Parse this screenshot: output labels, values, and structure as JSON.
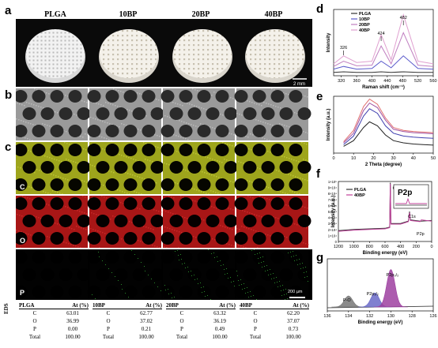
{
  "figure": {
    "panel_labels": [
      "a",
      "b",
      "c",
      "d",
      "e",
      "f",
      "g"
    ],
    "columns": [
      "PLGA",
      "10BP",
      "20BP",
      "40BP"
    ],
    "scale_bar_a": "2 mm",
    "scale_bar_c": "200 µm",
    "element_labels": [
      "C",
      "O",
      "P"
    ],
    "element_colors": {
      "C": "#b8c020",
      "O": "#c41a1a",
      "P": "#1a7a1a"
    }
  },
  "eds": {
    "row_label": "EDS",
    "header_suffix": "At (%)",
    "groups": [
      {
        "name": "PLGA",
        "rows": [
          [
            "C",
            "63.01"
          ],
          [
            "O",
            "36.99"
          ],
          [
            "P",
            "0.00"
          ],
          [
            "Total",
            "100.00"
          ]
        ]
      },
      {
        "name": "10BP",
        "rows": [
          [
            "C",
            "62.77"
          ],
          [
            "O",
            "37.02"
          ],
          [
            "P",
            "0.21"
          ],
          [
            "Total",
            "100.00"
          ]
        ]
      },
      {
        "name": "20BP",
        "rows": [
          [
            "C",
            "63.32"
          ],
          [
            "O",
            "36.19"
          ],
          [
            "P",
            "0.49"
          ],
          [
            "Total",
            "100.00"
          ]
        ]
      },
      {
        "name": "40BP",
        "rows": [
          [
            "C",
            "62.20"
          ],
          [
            "O",
            "37.07"
          ],
          [
            "P",
            "0.73"
          ],
          [
            "Total",
            "100.00"
          ]
        ]
      }
    ]
  },
  "chart_data": [
    {
      "panel": "d",
      "type": "line",
      "xlabel": "Raman shift (cm⁻¹)",
      "ylabel": "Intensity",
      "xlim": [
        300,
        560
      ],
      "xticks": [
        320,
        360,
        400,
        440,
        480,
        520,
        560
      ],
      "legend": [
        "PLGA",
        "10BP",
        "20BP",
        "40BP"
      ],
      "legend_position": "top-right",
      "annotations": [
        {
          "text": "326",
          "x": 326
        },
        {
          "text": "424",
          "x": 424
        },
        {
          "text": "482",
          "x": 482
        }
      ],
      "series": [
        {
          "name": "PLGA",
          "color": "#333333",
          "x": [
            300,
            326,
            360,
            400,
            424,
            450,
            482,
            520,
            560
          ],
          "y": [
            0.05,
            0.06,
            0.05,
            0.05,
            0.06,
            0.05,
            0.06,
            0.05,
            0.05
          ]
        },
        {
          "name": "10BP",
          "color": "#5a5acb",
          "x": [
            300,
            326,
            360,
            400,
            424,
            450,
            482,
            520,
            560
          ],
          "y": [
            0.1,
            0.14,
            0.1,
            0.11,
            0.22,
            0.12,
            0.3,
            0.11,
            0.1
          ]
        },
        {
          "name": "20BP",
          "color": "#c07fc0",
          "x": [
            300,
            326,
            360,
            400,
            424,
            450,
            482,
            520,
            560
          ],
          "y": [
            0.14,
            0.22,
            0.15,
            0.16,
            0.45,
            0.18,
            0.65,
            0.16,
            0.14
          ]
        },
        {
          "name": "40BP",
          "color": "#e0a0d0",
          "x": [
            300,
            326,
            360,
            400,
            424,
            450,
            482,
            520,
            560
          ],
          "y": [
            0.18,
            0.3,
            0.2,
            0.22,
            0.62,
            0.24,
            0.92,
            0.22,
            0.18
          ]
        }
      ]
    },
    {
      "panel": "e",
      "type": "line",
      "xlabel": "2 Theta (degree)",
      "ylabel": "Intensity (a.u.)",
      "xlim": [
        0,
        50
      ],
      "xticks": [
        0,
        10,
        20,
        30,
        40,
        50
      ],
      "series": [
        {
          "name": "PLGA",
          "color": "#222222",
          "x": [
            5,
            10,
            15,
            18,
            22,
            26,
            30,
            35,
            40,
            45,
            50
          ],
          "y": [
            0.12,
            0.22,
            0.45,
            0.55,
            0.48,
            0.32,
            0.22,
            0.18,
            0.16,
            0.15,
            0.14
          ]
        },
        {
          "name": "10BP",
          "color": "#4040b0",
          "x": [
            5,
            10,
            15,
            18,
            22,
            26,
            30,
            35,
            40,
            45,
            50
          ],
          "y": [
            0.15,
            0.3,
            0.65,
            0.78,
            0.7,
            0.48,
            0.35,
            0.3,
            0.28,
            0.27,
            0.26
          ]
        },
        {
          "name": "20BP",
          "color": "#a050a0",
          "x": [
            5,
            10,
            15,
            18,
            22,
            26,
            30,
            35,
            40,
            45,
            50
          ],
          "y": [
            0.18,
            0.35,
            0.75,
            0.88,
            0.8,
            0.58,
            0.42,
            0.38,
            0.36,
            0.35,
            0.34
          ]
        },
        {
          "name": "40BP",
          "color": "#e07070",
          "x": [
            5,
            10,
            15,
            18,
            22,
            26,
            30,
            35,
            40,
            45,
            50
          ],
          "y": [
            0.2,
            0.4,
            0.82,
            0.95,
            0.86,
            0.62,
            0.45,
            0.4,
            0.38,
            0.37,
            0.36
          ]
        }
      ]
    },
    {
      "panel": "f",
      "type": "line",
      "xlabel": "Binding energy (eV)",
      "ylabel": "Intensity (a.u.)",
      "xlim": [
        1200,
        0
      ],
      "xticks": [
        1200,
        1000,
        800,
        600,
        400,
        200,
        0
      ],
      "ytick_labels": [
        "1×10⁵",
        "9×10⁴",
        "8×10⁴",
        "7×10⁴",
        "6×10⁴",
        "5×10⁴",
        "4×10⁴",
        "3×10⁴",
        "2×10⁴",
        "1×10⁴",
        "0"
      ],
      "legend": [
        "PLGA",
        "40BP"
      ],
      "annotations": [
        {
          "text": "O1s",
          "x": 532
        },
        {
          "text": "C1s",
          "x": 285
        },
        {
          "text": "P2p",
          "x": 133
        }
      ],
      "inset_title": "P2p",
      "series": [
        {
          "name": "PLGA",
          "color": "#333333",
          "x": [
            1200,
            1000,
            800,
            600,
            540,
            532,
            525,
            400,
            300,
            285,
            275,
            150,
            133,
            0
          ],
          "y": [
            0.18,
            0.2,
            0.21,
            0.22,
            0.24,
            0.98,
            0.3,
            0.3,
            0.34,
            0.5,
            0.36,
            0.34,
            0.34,
            0.35
          ]
        },
        {
          "name": "40BP",
          "color": "#c0409a",
          "x": [
            1200,
            1000,
            800,
            600,
            540,
            532,
            525,
            400,
            300,
            285,
            275,
            150,
            133,
            0
          ],
          "y": [
            0.17,
            0.19,
            0.2,
            0.21,
            0.23,
            0.96,
            0.29,
            0.29,
            0.33,
            0.48,
            0.35,
            0.33,
            0.36,
            0.34
          ]
        }
      ]
    },
    {
      "panel": "g",
      "type": "area",
      "xlabel": "Binding energy (eV)",
      "xlim": [
        136,
        126
      ],
      "xticks": [
        136,
        134,
        132,
        130,
        128,
        126
      ],
      "annotations": [
        {
          "text": "P-O",
          "x": 134.0
        },
        {
          "text": "P2p₁/₂",
          "x": 131.5
        },
        {
          "text": "P2p₃/₂",
          "x": 130.0
        }
      ],
      "series": [
        {
          "name": "P-O",
          "color": "#777777",
          "center": 134.0,
          "height": 0.25
        },
        {
          "name": "P2p1/2",
          "color": "#6a6ac8",
          "center": 131.5,
          "height": 0.32
        },
        {
          "name": "P2p3/2",
          "color": "#9d3fa0",
          "center": 130.0,
          "height": 0.85
        }
      ]
    }
  ]
}
